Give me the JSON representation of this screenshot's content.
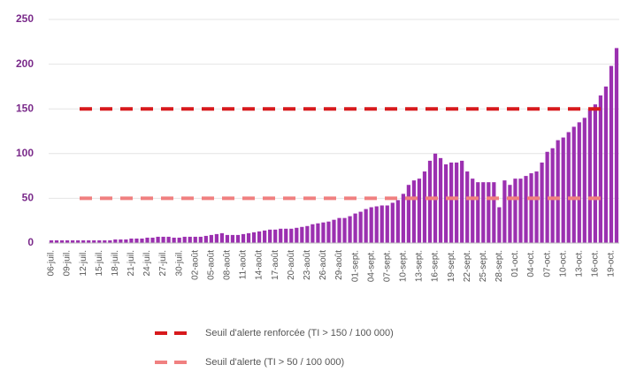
{
  "chart_data": {
    "type": "bar",
    "categories": [
      "06-juil.",
      null,
      null,
      "09-juil.",
      null,
      null,
      "12-juil.",
      null,
      null,
      "15-juil.",
      null,
      null,
      "18-juil.",
      null,
      null,
      "21-juil.",
      null,
      null,
      "24-juil.",
      null,
      null,
      "27-juil.",
      null,
      null,
      "30-juil.",
      null,
      null,
      "02-août",
      null,
      null,
      "05-août",
      null,
      null,
      "08-août",
      null,
      null,
      "11-août",
      null,
      null,
      "14-août",
      null,
      null,
      "17-août",
      null,
      null,
      "20-août",
      null,
      null,
      "23-août",
      null,
      null,
      "26-août",
      null,
      null,
      "29-août",
      null,
      null,
      "01-sept.",
      null,
      null,
      "04-sept.",
      null,
      null,
      "07-sept.",
      null,
      null,
      "10-sept.",
      null,
      null,
      "13-sept.",
      null,
      null,
      "16-sept.",
      null,
      null,
      "19-sept.",
      null,
      null,
      "22-sept.",
      null,
      null,
      "25-sept.",
      null,
      null,
      "28-sept.",
      null,
      null,
      "01-oct.",
      null,
      null,
      "04-oct.",
      null,
      null,
      "07-oct.",
      null,
      null,
      "10-oct.",
      null,
      null,
      "13-oct.",
      null,
      null,
      "16-oct.",
      null,
      null,
      "19-oct.",
      null
    ],
    "values": [
      3,
      3,
      3,
      3,
      3,
      3,
      3,
      3,
      3,
      3,
      3,
      3,
      4,
      4,
      4,
      5,
      5,
      5,
      6,
      6,
      7,
      7,
      7,
      6,
      6,
      7,
      7,
      7,
      7,
      8,
      9,
      10,
      11,
      9,
      9,
      9,
      10,
      11,
      12,
      13,
      14,
      15,
      15,
      16,
      16,
      16,
      17,
      18,
      19,
      21,
      22,
      23,
      24,
      26,
      28,
      28,
      30,
      33,
      35,
      38,
      40,
      41,
      42,
      42,
      45,
      48,
      55,
      65,
      70,
      72,
      80,
      92,
      100,
      95,
      88,
      90,
      90,
      92,
      80,
      72,
      68,
      68,
      68,
      68,
      40,
      70,
      65,
      72,
      72,
      75,
      78,
      80,
      90,
      102,
      106,
      115,
      118,
      124,
      130,
      135,
      140,
      150,
      155,
      165,
      175,
      198,
      218
    ],
    "color": "#9b30b0",
    "thresholds": [
      {
        "name": "Seuil d'alerte renforcée (TI > 150 / 100 000)",
        "value": 150,
        "color": "#d7191c"
      },
      {
        "name": "Seuil d'alerte (TI > 50 / 100 000)",
        "value": 50,
        "color": "#f08080"
      }
    ],
    "ylim": [
      0,
      250
    ],
    "yticks": [
      0,
      50,
      100,
      150,
      200,
      250
    ],
    "grid": true
  }
}
